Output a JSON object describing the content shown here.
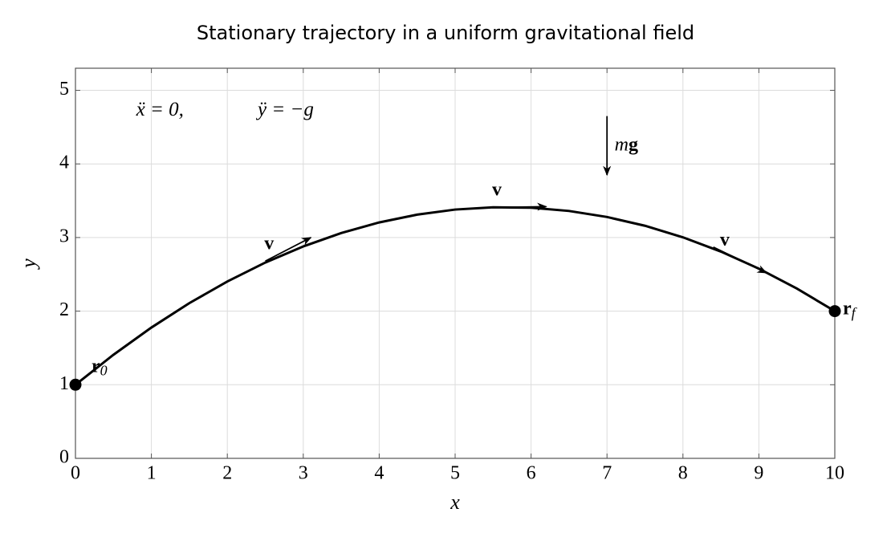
{
  "chart_data": {
    "type": "line",
    "title": "Stationary trajectory in a uniform gravitational field",
    "xlabel": "x",
    "ylabel": "y",
    "x": [
      0,
      0.5,
      1,
      1.5,
      2,
      2.5,
      3,
      3.5,
      4,
      4.5,
      5,
      5.5,
      6,
      6.5,
      7,
      7.5,
      8,
      8.5,
      9,
      9.5,
      10
    ],
    "values": [
      1,
      1.407,
      1.777,
      2.109,
      2.403,
      2.66,
      2.879,
      3.061,
      3.205,
      3.311,
      3.38,
      3.411,
      3.405,
      3.361,
      3.279,
      3.16,
      3.003,
      2.809,
      2.577,
      2.307,
      2
    ],
    "color": "#000000",
    "xlim": [
      0,
      10
    ],
    "ylim": [
      0,
      5.3
    ],
    "xticks": [
      0,
      1,
      2,
      3,
      4,
      5,
      6,
      7,
      8,
      9,
      10
    ],
    "yticks": [
      0,
      1,
      2,
      3,
      4,
      5
    ],
    "grid": true,
    "points": [
      {
        "label": "r",
        "subscript": "0",
        "x": 0,
        "y": 1
      },
      {
        "label": "r",
        "subscript": "f",
        "x": 10,
        "y": 2
      }
    ],
    "arrows": [
      {
        "label": "v",
        "from": [
          2.5,
          2.68
        ],
        "to": [
          3.1,
          3.0
        ],
        "label_at": [
          2.55,
          2.9
        ]
      },
      {
        "label": "v",
        "from": [
          5.6,
          3.41
        ],
        "to": [
          6.2,
          3.42
        ],
        "label_at": [
          5.55,
          3.63
        ]
      },
      {
        "label": "v",
        "from": [
          8.4,
          2.87
        ],
        "to": [
          9.1,
          2.52
        ],
        "label_at": [
          8.55,
          2.95
        ]
      },
      {
        "label": [
          "m",
          "g"
        ],
        "from": [
          7,
          4.65
        ],
        "to": [
          7,
          3.85
        ],
        "label_at": [
          7.1,
          4.25
        ]
      }
    ],
    "annotations": [
      {
        "text": "ẍ = 0,",
        "x": 0.8,
        "y": 4.72
      },
      {
        "text": "ÿ = −g",
        "x": 2.4,
        "y": 4.72
      }
    ]
  }
}
